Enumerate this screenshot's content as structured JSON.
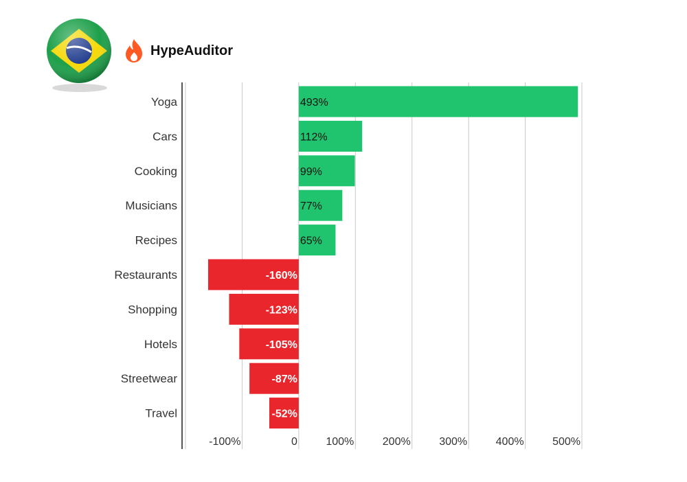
{
  "brand": {
    "name": "HypeAuditor",
    "logo_icon": "flame-icon",
    "logo_color": "#ff5a24",
    "flag_icon": "brazil-flag-icon"
  },
  "colors": {
    "positive": "#20c46e",
    "negative": "#e8262c",
    "grid": "#c8c8c8",
    "axis": "#555555",
    "label_text": "#333333"
  },
  "chart_data": {
    "type": "bar",
    "orientation": "horizontal",
    "categories": [
      "Yoga",
      "Cars",
      "Cooking",
      "Musicians",
      "Recipes",
      "Restaurants",
      "Shopping",
      "Hotels",
      "Streetwear",
      "Travel"
    ],
    "values": [
      493,
      112,
      99,
      77,
      65,
      -160,
      -123,
      -105,
      -87,
      -52
    ],
    "value_labels": [
      "493%",
      "112%",
      "99%",
      "77%",
      "65%",
      "-160%",
      "-123%",
      "-105%",
      "-87%",
      "-52%"
    ],
    "xlim": [
      -200,
      500
    ],
    "xticks": [
      -100,
      0,
      100,
      200,
      300,
      400,
      500
    ],
    "xtick_labels": [
      "-100%",
      "0",
      "100%",
      "200%",
      "300%",
      "400%",
      "500%"
    ],
    "title": "",
    "xlabel": "",
    "ylabel": "",
    "grid": true,
    "legend": "none"
  }
}
